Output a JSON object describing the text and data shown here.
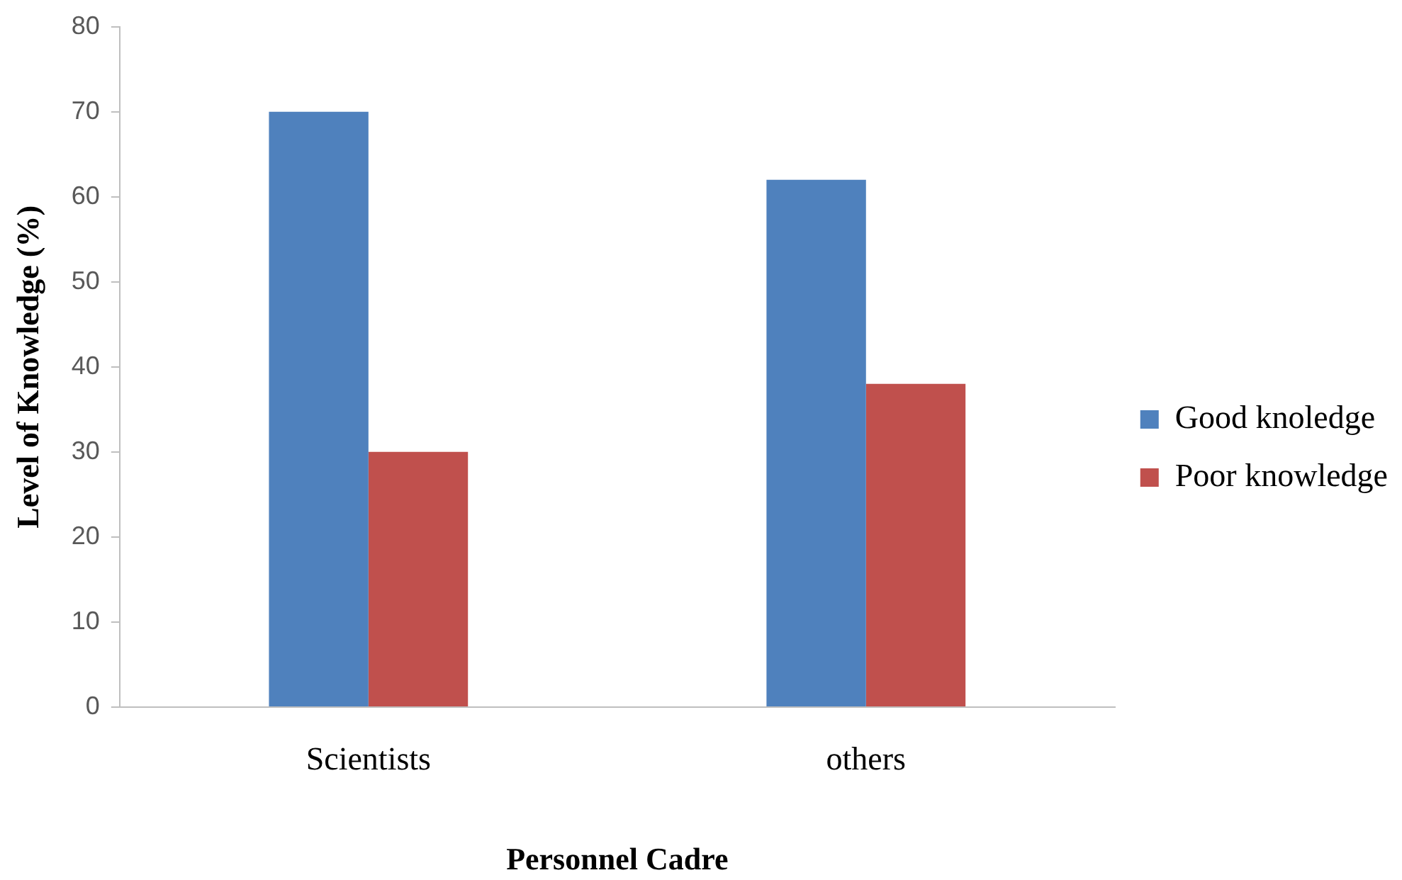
{
  "chart_data": {
    "type": "bar",
    "xlabel": "Personnel Cadre",
    "ylabel": "Level of Knowledge (%)",
    "categories": [
      "Scientists",
      "others"
    ],
    "series": [
      {
        "name": "Good knoledge",
        "color": "#4f81bd",
        "values": [
          70,
          62
        ]
      },
      {
        "name": "Poor knowledge",
        "color": "#c0504d",
        "values": [
          30,
          38
        ]
      }
    ],
    "ylim": [
      0,
      80
    ],
    "yticks": [
      0,
      10,
      20,
      30,
      40,
      50,
      60,
      70,
      80
    ],
    "grid": false,
    "legend": "right"
  }
}
